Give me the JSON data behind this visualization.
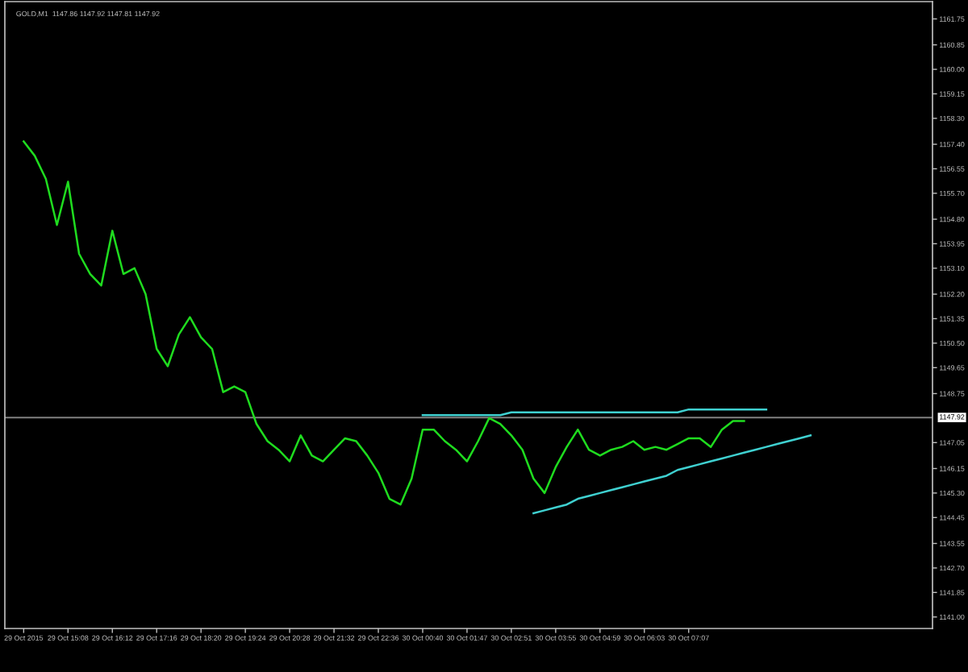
{
  "chart_data": {
    "type": "line",
    "title": "GOLD,M1  1147.86 1147.92 1147.81 1147.92",
    "categories": [
      "29 Oct 2015",
      null,
      null,
      null,
      "29 Oct 15:08",
      null,
      null,
      null,
      "29 Oct 16:12",
      null,
      null,
      null,
      "29 Oct 17:16",
      null,
      null,
      null,
      "29 Oct 18:20",
      null,
      null,
      null,
      "29 Oct 19:24",
      null,
      null,
      null,
      "29 Oct 20:28",
      null,
      null,
      null,
      "29 Oct 21:32",
      null,
      null,
      null,
      "29 Oct 22:36",
      null,
      null,
      null,
      "30 Oct 00:40",
      null,
      null,
      null,
      "30 Oct 01:47",
      null,
      null,
      null,
      "30 Oct 02:51",
      null,
      null,
      null,
      "30 Oct 03:55",
      null,
      null,
      null,
      "30 Oct 04:59",
      null,
      null,
      null,
      "30 Oct 06:03",
      null,
      null,
      null,
      "30 Oct 07:07",
      null,
      null,
      null,
      null,
      null,
      null,
      null,
      null,
      null,
      null,
      null,
      null,
      null,
      null,
      null,
      null,
      null,
      null,
      null,
      null,
      null,
      null
    ],
    "series": [
      {
        "color": "#1fdc1f",
        "values": [
          1157.5,
          1157.0,
          1156.2,
          1154.6,
          1156.1,
          1153.6,
          1152.9,
          1152.5,
          1154.4,
          1152.9,
          1153.1,
          1152.2,
          1150.3,
          1149.7,
          1150.8,
          1151.4,
          1150.7,
          1150.3,
          1148.8,
          1149.0,
          1148.8,
          1147.7,
          1147.1,
          1146.8,
          1146.4,
          1147.3,
          1146.6,
          1146.4,
          1146.8,
          1147.2,
          1147.1,
          1146.6,
          1146.0,
          1145.1,
          1144.9,
          1145.8,
          1147.5,
          1147.5,
          1147.1,
          1146.8,
          1146.4,
          1147.1,
          1147.9,
          1147.7,
          1147.3,
          1146.8,
          1145.8,
          1145.3,
          1146.2,
          1146.9,
          1147.5,
          1146.8,
          1146.6,
          1146.8,
          1146.9,
          1147.1,
          1146.8,
          1146.9,
          1146.8,
          1147.0,
          1147.2,
          1147.2,
          1146.9,
          1147.5,
          1147.8,
          1147.8,
          null,
          null,
          null,
          null,
          null,
          null,
          null,
          null,
          null,
          null,
          null,
          null,
          null,
          null,
          null,
          null,
          null
        ]
      },
      {
        "color": "#3fd0d0",
        "values": [
          null,
          null,
          null,
          null,
          null,
          null,
          null,
          null,
          null,
          null,
          null,
          null,
          null,
          null,
          null,
          null,
          null,
          null,
          null,
          null,
          null,
          null,
          null,
          null,
          null,
          null,
          null,
          null,
          null,
          null,
          null,
          null,
          null,
          null,
          null,
          null,
          1148.0,
          1148.0,
          1148.0,
          1148.0,
          1148.0,
          1148.0,
          1148.0,
          1148.0,
          1148.1,
          1148.1,
          1148.1,
          1148.1,
          1148.1,
          1148.1,
          1148.1,
          1148.1,
          1148.1,
          1148.1,
          1148.1,
          1148.1,
          1148.1,
          1148.1,
          1148.1,
          1148.1,
          1148.2,
          1148.2,
          1148.2,
          1148.2,
          1148.2,
          1148.2,
          1148.2,
          1148.2,
          null,
          null,
          null,
          null,
          null,
          null,
          null,
          null,
          null,
          null,
          null,
          null,
          null,
          null,
          null
        ]
      },
      {
        "color": "#3fd0d0",
        "values": [
          null,
          null,
          null,
          null,
          null,
          null,
          null,
          null,
          null,
          null,
          null,
          null,
          null,
          null,
          null,
          null,
          null,
          null,
          null,
          null,
          null,
          null,
          null,
          null,
          null,
          null,
          null,
          null,
          null,
          null,
          null,
          null,
          null,
          null,
          null,
          null,
          null,
          null,
          null,
          null,
          null,
          null,
          null,
          null,
          null,
          null,
          1144.6,
          1144.7,
          1144.8,
          1144.9,
          1145.1,
          1145.2,
          1145.3,
          1145.4,
          1145.5,
          1145.6,
          1145.7,
          1145.8,
          1145.9,
          1146.1,
          1146.2,
          1146.3,
          1146.4,
          1146.5,
          1146.6,
          1146.7,
          1146.8,
          1146.9,
          1147.0,
          1147.1,
          1147.2,
          1147.3,
          null,
          null,
          null,
          null,
          null,
          null,
          null,
          null,
          null,
          null,
          null
        ]
      }
    ],
    "ylim": [
      1140.6,
      1162.35
    ],
    "yticks": [
      {
        "value": 1161.75,
        "label": "1161.75"
      },
      {
        "value": 1160.85,
        "label": "1160.85"
      },
      {
        "value": 1160.0,
        "label": "1160.00"
      },
      {
        "value": 1159.15,
        "label": "1159.15"
      },
      {
        "value": 1158.3,
        "label": "1158.30"
      },
      {
        "value": 1157.4,
        "label": "1157.40"
      },
      {
        "value": 1156.55,
        "label": "1156.55"
      },
      {
        "value": 1155.7,
        "label": "1155.70"
      },
      {
        "value": 1154.8,
        "label": "1154.80"
      },
      {
        "value": 1153.95,
        "label": "1153.95"
      },
      {
        "value": 1153.1,
        "label": "1153.10"
      },
      {
        "value": 1152.2,
        "label": "1152.20"
      },
      {
        "value": 1151.35,
        "label": "1151.35"
      },
      {
        "value": 1150.5,
        "label": "1150.50"
      },
      {
        "value": 1149.65,
        "label": "1149.65"
      },
      {
        "value": 1148.75,
        "label": "1148.75"
      },
      {
        "value": 1147.05,
        "label": "1147.05"
      },
      {
        "value": 1146.15,
        "label": "1146.15"
      },
      {
        "value": 1145.3,
        "label": "1145.30"
      },
      {
        "value": 1144.45,
        "label": "1144.45"
      },
      {
        "value": 1143.55,
        "label": "1143.55"
      },
      {
        "value": 1142.7,
        "label": "1142.70"
      },
      {
        "value": 1141.85,
        "label": "1141.85"
      },
      {
        "value": 1141.0,
        "label": "1141.00"
      }
    ],
    "ref_lines": [
      {
        "axis": "y",
        "value": 1147.92,
        "label": "1147.92",
        "color": "#808080"
      }
    ],
    "grid": false,
    "legend": false,
    "marker": "none",
    "line_style": "solid"
  }
}
